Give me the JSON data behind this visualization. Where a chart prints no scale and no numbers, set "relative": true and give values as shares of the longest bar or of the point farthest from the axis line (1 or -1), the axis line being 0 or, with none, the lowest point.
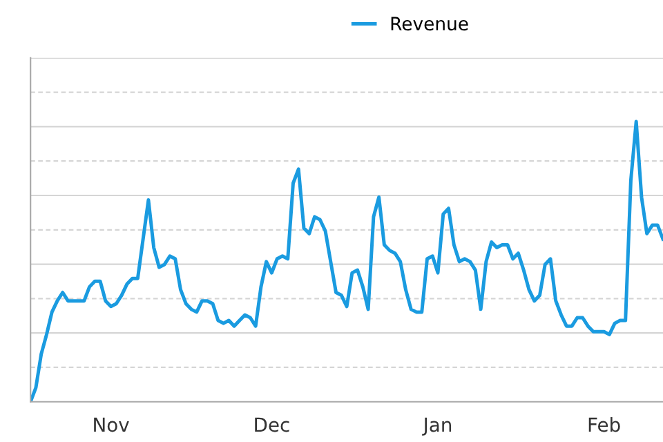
{
  "chart_data": {
    "type": "line",
    "relative": true,
    "grid": "y",
    "legend": "top",
    "marker": "none",
    "line_style": "solid",
    "categories": [
      null,
      null,
      null,
      null,
      null,
      null,
      null,
      null,
      null,
      null,
      null,
      null,
      null,
      null,
      null,
      "Nov",
      null,
      null,
      null,
      null,
      null,
      null,
      null,
      null,
      null,
      null,
      null,
      null,
      null,
      null,
      null,
      null,
      null,
      null,
      null,
      null,
      null,
      null,
      null,
      null,
      null,
      null,
      null,
      null,
      null,
      "Dec",
      null,
      null,
      null,
      null,
      null,
      null,
      null,
      null,
      null,
      null,
      null,
      null,
      null,
      null,
      null,
      null,
      null,
      null,
      null,
      null,
      null,
      null,
      null,
      null,
      null,
      null,
      null,
      null,
      null,
      null,
      "Jan",
      null,
      null,
      null,
      null,
      null,
      null,
      null,
      null,
      null,
      null,
      null,
      null,
      null,
      null,
      null,
      null,
      null,
      null,
      null,
      null,
      null,
      null,
      null,
      null,
      null,
      null,
      null,
      null,
      null,
      null,
      "Feb",
      null,
      null,
      null,
      null,
      null,
      null,
      null,
      null,
      null,
      null,
      null
    ],
    "series": [
      {
        "name": "Revenue",
        "color": "#1a9be0",
        "values": [
          0,
          0.05,
          0.17,
          0.24,
          0.32,
          0.36,
          0.39,
          0.36,
          0.36,
          0.36,
          0.36,
          0.41,
          0.43,
          0.43,
          0.36,
          0.34,
          0.35,
          0.38,
          0.42,
          0.44,
          0.44,
          0.58,
          0.72,
          0.55,
          0.48,
          0.49,
          0.52,
          0.51,
          0.4,
          0.35,
          0.33,
          0.32,
          0.36,
          0.36,
          0.35,
          0.29,
          0.28,
          0.29,
          0.27,
          0.29,
          0.31,
          0.3,
          0.27,
          0.41,
          0.5,
          0.46,
          0.51,
          0.52,
          0.51,
          0.78,
          0.83,
          0.62,
          0.6,
          0.66,
          0.65,
          0.61,
          0.5,
          0.39,
          0.38,
          0.34,
          0.46,
          0.47,
          0.41,
          0.33,
          0.66,
          0.73,
          0.56,
          0.54,
          0.53,
          0.5,
          0.4,
          0.33,
          0.32,
          0.32,
          0.51,
          0.52,
          0.46,
          0.67,
          0.69,
          0.56,
          0.5,
          0.51,
          0.5,
          0.47,
          0.33,
          0.5,
          0.57,
          0.55,
          0.56,
          0.56,
          0.51,
          0.53,
          0.47,
          0.4,
          0.36,
          0.38,
          0.49,
          0.51,
          0.36,
          0.31,
          0.27,
          0.27,
          0.3,
          0.3,
          0.27,
          0.25,
          0.25,
          0.25,
          0.24,
          0.28,
          0.29,
          0.29,
          0.79,
          1.0,
          0.73,
          0.6,
          0.63,
          0.63,
          0.58
        ]
      }
    ]
  }
}
